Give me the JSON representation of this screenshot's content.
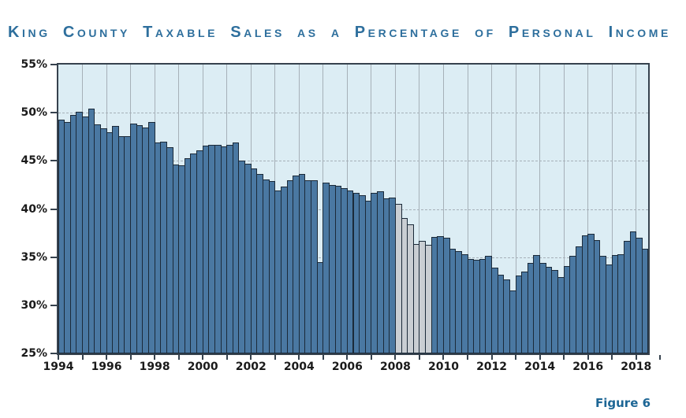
{
  "title": "King County Taxable Sales as a Percentage of Personal Income",
  "figure_label": "Figure 6",
  "colors": {
    "title": "#2e6f9d",
    "figure_label": "#1d6695",
    "bar_fill": "#4a78a2",
    "bar_outline": "#1b2a39",
    "recession_fill": "#c9ced3",
    "plot_background": "#dcedf4",
    "gridline": "#a6b0b8",
    "axis_frame": "#36424e",
    "tick_text": "#1a1a1a"
  },
  "chart_data": {
    "type": "bar",
    "title": "King County Taxable Sales as a Percentage of Personal Income",
    "xlabel": "",
    "ylabel": "",
    "unit": "percent of personal income",
    "frequency": "quarterly",
    "x_range": "1994Q1 to 2018Q2",
    "ylim": [
      25,
      55
    ],
    "grid": true,
    "legend": false,
    "y_ticks": [
      {
        "label": "25%",
        "value": 25
      },
      {
        "label": "30%",
        "value": 30
      },
      {
        "label": "35%",
        "value": 35
      },
      {
        "label": "40%",
        "value": 40
      },
      {
        "label": "45%",
        "value": 45
      },
      {
        "label": "50%",
        "value": 50
      },
      {
        "label": "55%",
        "value": 55
      }
    ],
    "x_ticks": [
      {
        "label": "1994",
        "year": 1994
      },
      {
        "label": "1996",
        "year": 1996
      },
      {
        "label": "1998",
        "year": 1998
      },
      {
        "label": "2000",
        "year": 2000
      },
      {
        "label": "2002",
        "year": 2002
      },
      {
        "label": "2004",
        "year": 2004
      },
      {
        "label": "2006",
        "year": 2006
      },
      {
        "label": "2008",
        "year": 2008
      },
      {
        "label": "2010",
        "year": 2010
      },
      {
        "label": "2012",
        "year": 2012
      },
      {
        "label": "2014",
        "year": 2014
      },
      {
        "label": "2016",
        "year": 2016
      },
      {
        "label": "2018",
        "year": 2018
      }
    ],
    "years": [
      {
        "year": 1994,
        "values": [
          49.3,
          49.0,
          49.8,
          50.1
        ]
      },
      {
        "year": 1995,
        "values": [
          49.6,
          50.4,
          48.8,
          48.4
        ]
      },
      {
        "year": 1996,
        "values": [
          48.0,
          48.6,
          47.6,
          47.6
        ]
      },
      {
        "year": 1997,
        "values": [
          48.9,
          48.7,
          48.5,
          49.0
        ]
      },
      {
        "year": 1998,
        "values": [
          46.9,
          47.0,
          46.4,
          44.6
        ]
      },
      {
        "year": 1999,
        "values": [
          44.5,
          45.3,
          45.8,
          46.1
        ]
      },
      {
        "year": 2000,
        "values": [
          46.6,
          46.7,
          46.7,
          46.5
        ]
      },
      {
        "year": 2001,
        "values": [
          46.7,
          46.9,
          45.0,
          44.7
        ]
      },
      {
        "year": 2002,
        "values": [
          44.2,
          43.6,
          43.1,
          42.9
        ]
      },
      {
        "year": 2003,
        "values": [
          41.9,
          42.3,
          43.0,
          43.5
        ]
      },
      {
        "year": 2004,
        "values": [
          43.6,
          43.0,
          43.0,
          34.5
        ]
      },
      {
        "year": 2005,
        "values": [
          42.7,
          42.5,
          42.4,
          42.2
        ]
      },
      {
        "year": 2006,
        "values": [
          41.9,
          41.7,
          41.4,
          40.9
        ]
      },
      {
        "year": 2007,
        "values": [
          41.7,
          41.8,
          41.1,
          41.2
        ]
      },
      {
        "year": 2008,
        "values": [
          40.5,
          39.1,
          38.4,
          36.4
        ]
      },
      {
        "year": 2009,
        "values": [
          36.7,
          36.3,
          37.1,
          37.2
        ]
      },
      {
        "year": 2010,
        "values": [
          37.0,
          35.9,
          35.6,
          35.3
        ]
      },
      {
        "year": 2011,
        "values": [
          34.8,
          34.7,
          34.8,
          35.1
        ]
      },
      {
        "year": 2012,
        "values": [
          33.9,
          33.2,
          32.7,
          31.5
        ]
      },
      {
        "year": 2013,
        "values": [
          33.1,
          33.5,
          34.4,
          35.2
        ]
      },
      {
        "year": 2014,
        "values": [
          34.4,
          34.0,
          33.7,
          32.9
        ]
      },
      {
        "year": 2015,
        "values": [
          34.1,
          35.1,
          36.1,
          37.3
        ]
      },
      {
        "year": 2016,
        "values": [
          37.4,
          36.8,
          35.1,
          34.2
        ]
      },
      {
        "year": 2017,
        "values": [
          35.2,
          35.3,
          36.7,
          37.7
        ]
      },
      {
        "year": 2018,
        "values": [
          37.0,
          35.9
        ]
      }
    ],
    "recession_gray_quarters": [
      "2008Q1",
      "2008Q2",
      "2008Q3",
      "2008Q4",
      "2009Q1",
      "2009Q2"
    ],
    "recession_gray_indices": [
      56,
      57,
      58,
      59,
      60,
      61
    ]
  }
}
